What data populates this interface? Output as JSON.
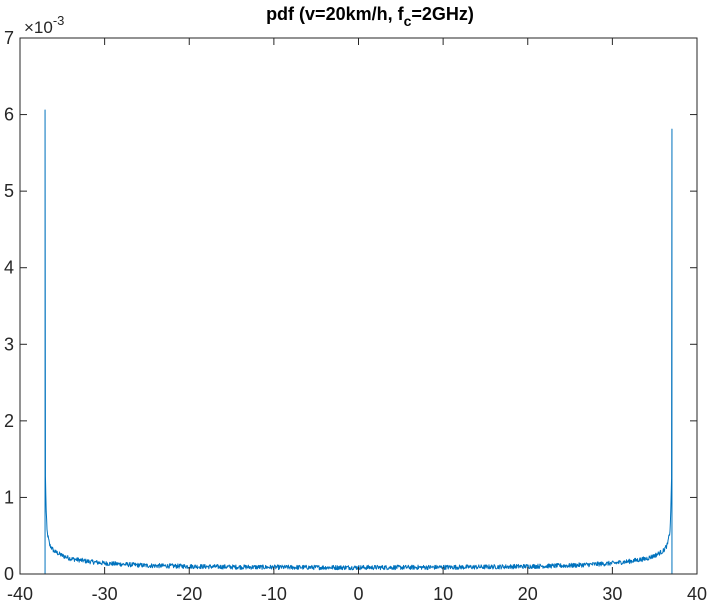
{
  "chart_data": {
    "type": "line",
    "title_main": "pdf (v=20km/h, f",
    "title_sub": "c",
    "title_tail": "=2GHz)",
    "y_exponent_base": "×10",
    "y_exponent_power": "-3",
    "xlim": [
      -40,
      40
    ],
    "ylim": [
      0,
      0.007
    ],
    "x_ticks": [
      -40,
      -30,
      -20,
      -10,
      0,
      10,
      20,
      30,
      40
    ],
    "x_tick_labels": [
      "-40",
      "-30",
      "-20",
      "-10",
      "0",
      "10",
      "20",
      "30",
      "40"
    ],
    "y_ticks": [
      0,
      0.001,
      0.002,
      0.003,
      0.004,
      0.005,
      0.006,
      0.007
    ],
    "y_tick_labels": [
      "0",
      "1",
      "2",
      "3",
      "4",
      "5",
      "6",
      "7"
    ],
    "grid": false,
    "legend": "none",
    "series": [
      {
        "color": "#0072BD",
        "x": [
          -37.04,
          -37.0,
          -36.9,
          -36.8,
          -36.5,
          -36.0,
          -35.0,
          -34.0,
          -32.0,
          -30.0,
          -25.0,
          -20.0,
          -15.0,
          -10.0,
          -5.0,
          0.0,
          5.0,
          10.0,
          15.0,
          20.0,
          25.0,
          30.0,
          32.0,
          34.0,
          35.0,
          36.0,
          36.5,
          36.8,
          36.9,
          37.0,
          37.04
        ],
        "y": [
          0.00606,
          0.0013,
          0.0008,
          0.00055,
          0.00038,
          0.0003,
          0.00024,
          0.0002,
          0.000165,
          0.00014,
          0.00011,
          0.0001,
          9.2e-05,
          8.8e-05,
          8.6e-05,
          8.5e-05,
          8.6e-05,
          8.8e-05,
          9.2e-05,
          0.0001,
          0.00011,
          0.00014,
          0.000165,
          0.0002,
          0.00024,
          0.0003,
          0.00038,
          0.00055,
          0.0008,
          0.0013,
          0.00581
        ]
      }
    ]
  }
}
